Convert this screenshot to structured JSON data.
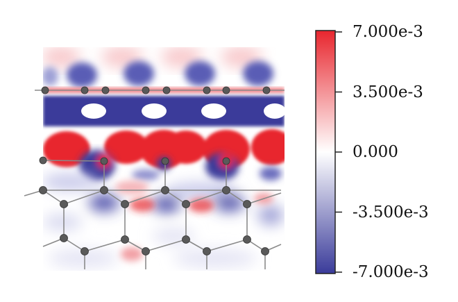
{
  "colorbar": {
    "ticks": [
      {
        "value": 0.007,
        "label": "7.000e-3"
      },
      {
        "value": 0.0035,
        "label": "3.500e-3"
      },
      {
        "value": 0.0,
        "label": "0.000"
      },
      {
        "value": -0.0035,
        "label": "-3.500e-3"
      },
      {
        "value": -0.007,
        "label": "-7.000e-3"
      }
    ],
    "colors": {
      "max": "#e8262e",
      "mid": "#ffffff",
      "min": "#3a3b9a"
    }
  },
  "colors": {
    "positive": "#e8262e",
    "negative": "#3a3b9a",
    "atom": "#5a5a5a",
    "bond": "#8a8a8a",
    "hole": "#ffffff"
  }
}
